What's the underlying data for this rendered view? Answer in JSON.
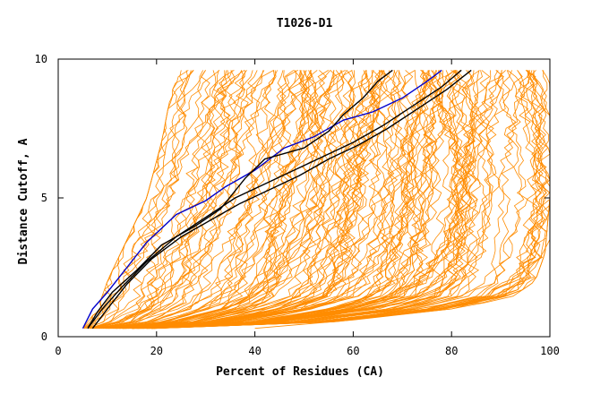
{
  "chart_data": {
    "type": "line",
    "title": "T1026-D1",
    "xlabel": "Percent of Residues (CA)",
    "ylabel": "Distance Cutoff, A",
    "xlim": [
      0,
      100
    ],
    "ylim": [
      0,
      10
    ],
    "x_ticks": [
      "0",
      "20",
      "40",
      "60",
      "80",
      "100"
    ],
    "y_ticks": [
      "0",
      "5",
      "10"
    ],
    "grid": false,
    "colors": {
      "background_models": "#ff8c00",
      "highlight_blue": "#0000cc",
      "highlight_black": "#000000",
      "axes": "#000000"
    },
    "background_series": {
      "description": "Approx. 150 orange GDT curves (distance cutoff vs. percent of residues), one per model; representative envelope shown",
      "count": 150,
      "color": "#ff8c00",
      "min_curve": [
        [
          5,
          0.3
        ],
        [
          8,
          1.0
        ],
        [
          10,
          2.0
        ],
        [
          14,
          3.5
        ],
        [
          18,
          5.0
        ],
        [
          21,
          7.0
        ],
        [
          23,
          8.8
        ],
        [
          25,
          9.6
        ]
      ],
      "max_curve": [
        [
          20,
          0.3
        ],
        [
          55,
          0.5
        ],
        [
          80,
          1.0
        ],
        [
          92,
          1.4
        ],
        [
          97,
          2.0
        ],
        [
          99,
          3.0
        ],
        [
          100,
          5.0
        ],
        [
          100,
          9.6
        ]
      ],
      "outlier_curve": [
        [
          40,
          0.3
        ],
        [
          60,
          0.6
        ],
        [
          80,
          1.0
        ],
        [
          91,
          1.5
        ],
        [
          97,
          2.5
        ],
        [
          100,
          3.5
        ],
        [
          100,
          9.6
        ]
      ]
    },
    "series": [
      {
        "name": "model-blue",
        "color": "#0000cc",
        "points": [
          [
            5,
            0.3
          ],
          [
            7,
            1.0
          ],
          [
            10,
            1.6
          ],
          [
            14,
            2.5
          ],
          [
            18,
            3.4
          ],
          [
            24,
            4.4
          ],
          [
            30,
            4.9
          ],
          [
            34,
            5.4
          ],
          [
            40,
            6.0
          ],
          [
            46,
            6.8
          ],
          [
            52,
            7.2
          ],
          [
            58,
            7.8
          ],
          [
            64,
            8.1
          ],
          [
            70,
            8.6
          ],
          [
            75,
            9.2
          ],
          [
            78,
            9.6
          ]
        ]
      },
      {
        "name": "model-black-1",
        "color": "#000000",
        "points": [
          [
            6,
            0.3
          ],
          [
            8,
            0.9
          ],
          [
            11,
            1.6
          ],
          [
            16,
            2.4
          ],
          [
            21,
            3.3
          ],
          [
            28,
            4.0
          ],
          [
            33,
            4.6
          ],
          [
            38,
            5.7
          ],
          [
            42,
            6.4
          ],
          [
            50,
            6.8
          ],
          [
            55,
            7.4
          ],
          [
            58,
            8.0
          ],
          [
            62,
            8.6
          ],
          [
            65,
            9.2
          ],
          [
            68,
            9.6
          ]
        ]
      },
      {
        "name": "model-black-2",
        "color": "#000000",
        "points": [
          [
            6,
            0.3
          ],
          [
            9,
            1.0
          ],
          [
            13,
            1.8
          ],
          [
            18,
            2.7
          ],
          [
            24,
            3.6
          ],
          [
            30,
            4.3
          ],
          [
            36,
            5.0
          ],
          [
            42,
            5.5
          ],
          [
            48,
            6.0
          ],
          [
            54,
            6.5
          ],
          [
            60,
            7.0
          ],
          [
            66,
            7.6
          ],
          [
            72,
            8.3
          ],
          [
            78,
            9.0
          ],
          [
            82,
            9.6
          ]
        ]
      },
      {
        "name": "model-black-3",
        "color": "#000000",
        "points": [
          [
            7,
            0.3
          ],
          [
            10,
            1.0
          ],
          [
            14,
            1.9
          ],
          [
            19,
            2.8
          ],
          [
            25,
            3.6
          ],
          [
            31,
            4.2
          ],
          [
            37,
            4.8
          ],
          [
            43,
            5.3
          ],
          [
            49,
            5.8
          ],
          [
            55,
            6.4
          ],
          [
            61,
            6.9
          ],
          [
            67,
            7.5
          ],
          [
            73,
            8.2
          ],
          [
            79,
            8.9
          ],
          [
            84,
            9.6
          ]
        ]
      }
    ]
  }
}
